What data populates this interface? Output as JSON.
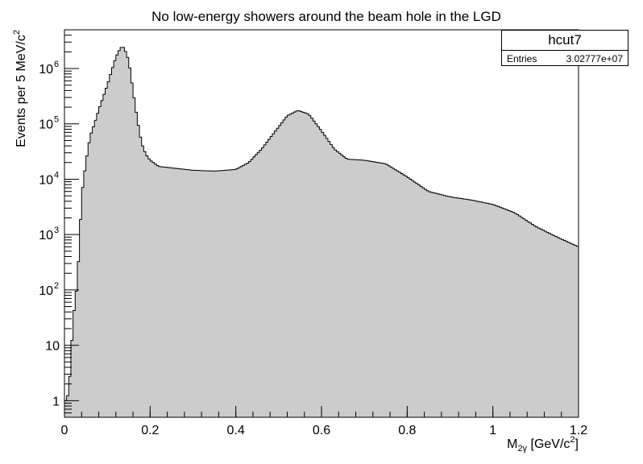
{
  "chart_data": {
    "type": "histogram",
    "title": "No low-energy showers around the beam hole in the LGD",
    "xlabel": {
      "base": "M",
      "sub": "2γ",
      "unit": "[GeV/c",
      "unit_sup": "2",
      "close": "]"
    },
    "ylabel": {
      "text": "Events per 5 MeV/c",
      "sup": "2"
    },
    "xlim": [
      0,
      1.2
    ],
    "ylim": [
      0.5,
      5000000
    ],
    "yscale": "log",
    "bin_width": 0.005,
    "fill_color": "#cccccc",
    "line_color": "#000000",
    "legend": "top-right",
    "x_ticks": [
      {
        "v": 0,
        "label": "0"
      },
      {
        "v": 0.2,
        "label": "0.2"
      },
      {
        "v": 0.4,
        "label": "0.4"
      },
      {
        "v": 0.6,
        "label": "0.6"
      },
      {
        "v": 0.8,
        "label": "0.8"
      },
      {
        "v": 1.0,
        "label": "1"
      },
      {
        "v": 1.2,
        "label": "1.2"
      }
    ],
    "y_ticks": [
      {
        "v": 1,
        "base": "1",
        "sup": ""
      },
      {
        "v": 10,
        "base": "10",
        "sup": ""
      },
      {
        "v": 100,
        "base": "10",
        "sup": "2"
      },
      {
        "v": 1000,
        "base": "10",
        "sup": "3"
      },
      {
        "v": 10000,
        "base": "10",
        "sup": "4"
      },
      {
        "v": 100000,
        "base": "10",
        "sup": "5"
      },
      {
        "v": 1000000,
        "base": "10",
        "sup": "6"
      }
    ],
    "curve": [
      [
        0.005,
        1
      ],
      [
        0.01,
        1.5
      ],
      [
        0.015,
        5
      ],
      [
        0.02,
        30
      ],
      [
        0.025,
        60
      ],
      [
        0.03,
        150
      ],
      [
        0.035,
        700
      ],
      [
        0.04,
        5000
      ],
      [
        0.05,
        20000
      ],
      [
        0.06,
        60000
      ],
      [
        0.07,
        100000
      ],
      [
        0.08,
        180000
      ],
      [
        0.09,
        300000
      ],
      [
        0.1,
        500000
      ],
      [
        0.11,
        900000
      ],
      [
        0.12,
        1600000
      ],
      [
        0.13,
        2300000
      ],
      [
        0.135,
        2500000
      ],
      [
        0.14,
        2300000
      ],
      [
        0.15,
        1400000
      ],
      [
        0.16,
        400000
      ],
      [
        0.17,
        120000
      ],
      [
        0.18,
        45000
      ],
      [
        0.19,
        28000
      ],
      [
        0.2,
        22000
      ],
      [
        0.22,
        17000
      ],
      [
        0.25,
        16000
      ],
      [
        0.3,
        14500
      ],
      [
        0.35,
        14000
      ],
      [
        0.4,
        15000
      ],
      [
        0.43,
        20000
      ],
      [
        0.46,
        35000
      ],
      [
        0.49,
        70000
      ],
      [
        0.52,
        140000
      ],
      [
        0.545,
        175000
      ],
      [
        0.57,
        150000
      ],
      [
        0.6,
        75000
      ],
      [
        0.63,
        35000
      ],
      [
        0.66,
        23000
      ],
      [
        0.7,
        22000
      ],
      [
        0.75,
        19000
      ],
      [
        0.8,
        11000
      ],
      [
        0.85,
        6000
      ],
      [
        0.9,
        4800
      ],
      [
        0.95,
        4200
      ],
      [
        1.0,
        3500
      ],
      [
        1.05,
        2500
      ],
      [
        1.1,
        1400
      ],
      [
        1.15,
        900
      ],
      [
        1.2,
        600
      ]
    ],
    "stats": {
      "name": "hcut7",
      "entries_label": "Entries",
      "entries_value": "3.02777e+07"
    }
  }
}
